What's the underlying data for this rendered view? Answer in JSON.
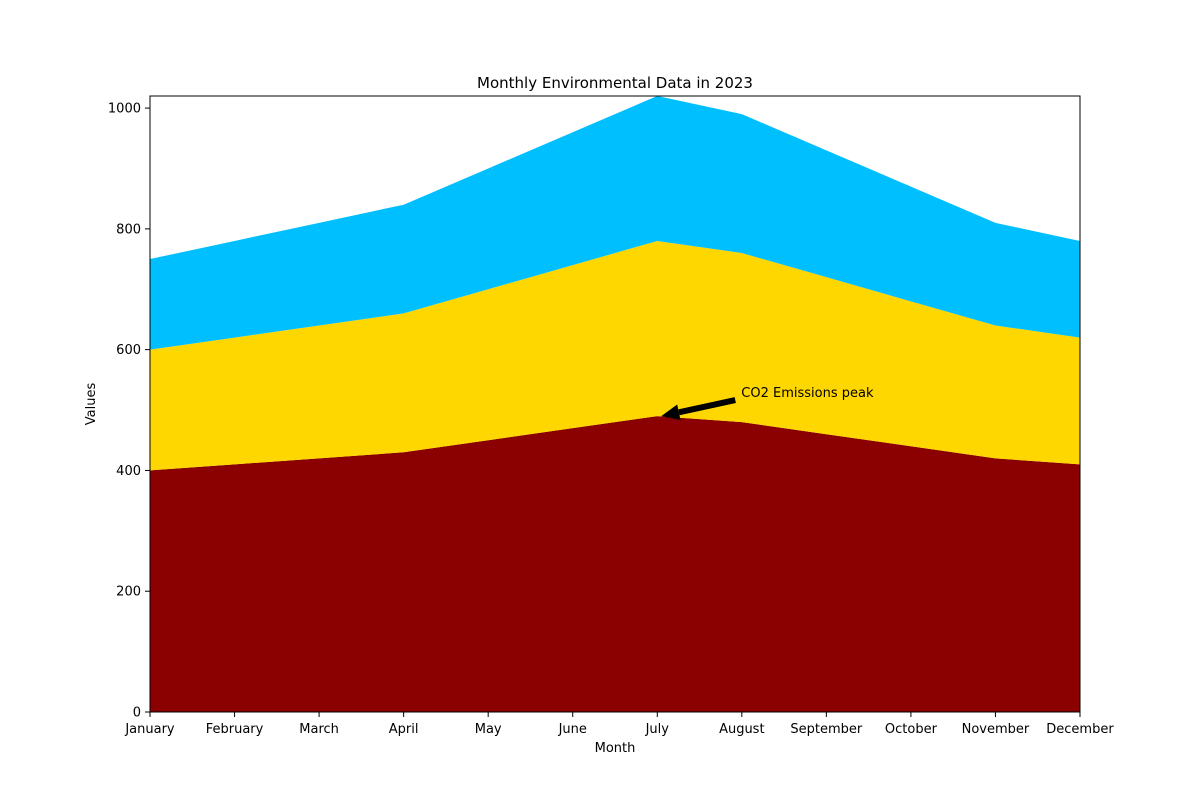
{
  "chart_data": {
    "type": "area",
    "stacked": true,
    "title": "Monthly Environmental Data in 2023",
    "xlabel": "Month",
    "ylabel": "Values",
    "ylim": [
      0,
      1020
    ],
    "yticks": [
      0,
      200,
      400,
      600,
      800,
      1000
    ],
    "categories": [
      "January",
      "February",
      "March",
      "April",
      "May",
      "June",
      "July",
      "August",
      "September",
      "October",
      "November",
      "December"
    ],
    "series": [
      {
        "color": "#8b0000",
        "values": [
          400,
          410,
          420,
          430,
          450,
          470,
          490,
          480,
          460,
          440,
          420,
          410
        ]
      },
      {
        "color": "#ffd700",
        "values": [
          200,
          210,
          220,
          230,
          250,
          270,
          290,
          280,
          260,
          240,
          220,
          210
        ]
      },
      {
        "color": "#00bfff",
        "values": [
          150,
          160,
          170,
          180,
          200,
          220,
          240,
          230,
          210,
          190,
          170,
          160
        ]
      }
    ],
    "grid": false,
    "legend": "none",
    "annotations": [
      {
        "text": "CO2 Emissions peak",
        "x": "July",
        "y": 490
      }
    ]
  }
}
